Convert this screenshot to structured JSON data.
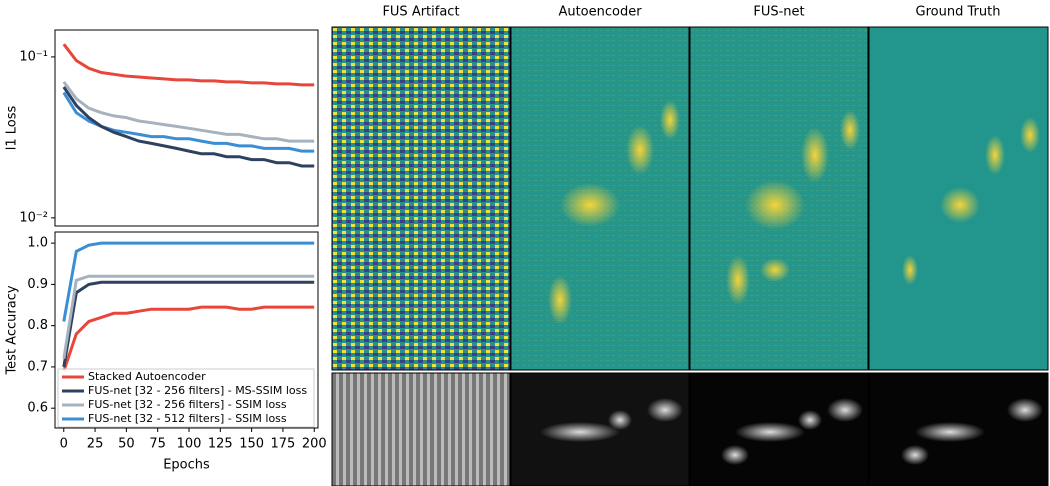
{
  "chart_data": [
    {
      "type": "line",
      "ylabel": "l1 Loss",
      "log_scale": true,
      "x": [
        0,
        10,
        20,
        30,
        40,
        50,
        60,
        70,
        80,
        90,
        100,
        110,
        120,
        130,
        140,
        150,
        160,
        170,
        180,
        190,
        200
      ],
      "xlim": [
        -7,
        203
      ],
      "ylim": [
        0.0089,
        0.147
      ],
      "yticks": [
        {
          "value": 0.1,
          "label": "10⁻¹"
        },
        {
          "value": 0.01,
          "label": "10⁻²"
        }
      ],
      "series": [
        {
          "color": "#e8463a",
          "values": [
            0.12,
            0.095,
            0.085,
            0.08,
            0.078,
            0.076,
            0.075,
            0.074,
            0.073,
            0.072,
            0.072,
            0.071,
            0.071,
            0.07,
            0.07,
            0.069,
            0.069,
            0.068,
            0.068,
            0.067,
            0.067
          ]
        },
        {
          "color": "#a6b3bf",
          "values": [
            0.07,
            0.055,
            0.048,
            0.045,
            0.043,
            0.042,
            0.04,
            0.039,
            0.038,
            0.037,
            0.036,
            0.035,
            0.034,
            0.033,
            0.033,
            0.032,
            0.031,
            0.031,
            0.03,
            0.03,
            0.03
          ]
        },
        {
          "color": "#3a8fd4",
          "values": [
            0.06,
            0.045,
            0.04,
            0.037,
            0.035,
            0.034,
            0.033,
            0.032,
            0.032,
            0.031,
            0.031,
            0.03,
            0.029,
            0.029,
            0.028,
            0.028,
            0.027,
            0.027,
            0.027,
            0.026,
            0.026
          ]
        },
        {
          "color": "#2e4160",
          "values": [
            0.065,
            0.05,
            0.042,
            0.037,
            0.034,
            0.032,
            0.03,
            0.029,
            0.028,
            0.027,
            0.026,
            0.025,
            0.025,
            0.024,
            0.024,
            0.023,
            0.023,
            0.022,
            0.022,
            0.021,
            0.021
          ]
        }
      ]
    },
    {
      "type": "line",
      "ylabel": "Test Accuracy",
      "xlabel": "Epochs",
      "legend": "lower left",
      "x": [
        0,
        10,
        20,
        30,
        40,
        50,
        60,
        70,
        80,
        90,
        100,
        110,
        120,
        130,
        140,
        150,
        160,
        170,
        180,
        190,
        200
      ],
      "xlim": [
        -7,
        203
      ],
      "ylim": [
        0.552,
        1.027
      ],
      "yticks": [
        0.6,
        0.7,
        0.8,
        0.9,
        {
          "value": 1.0,
          "label": "1.0"
        }
      ],
      "xticks": [
        0,
        25,
        50,
        75,
        100,
        125,
        150,
        175,
        200
      ],
      "series": [
        {
          "name": "Stacked Autoencoder",
          "color": "#e8463a",
          "values": [
            0.69,
            0.78,
            0.81,
            0.82,
            0.83,
            0.83,
            0.835,
            0.84,
            0.84,
            0.84,
            0.84,
            0.845,
            0.845,
            0.845,
            0.84,
            0.84,
            0.845,
            0.845,
            0.845,
            0.845,
            0.845
          ]
        },
        {
          "name": "FUS-net [32 - 256 filters] - MS-SSIM loss",
          "color": "#2e4160",
          "values": [
            0.7,
            0.88,
            0.9,
            0.905,
            0.905,
            0.905,
            0.905,
            0.905,
            0.905,
            0.905,
            0.905,
            0.905,
            0.905,
            0.905,
            0.905,
            0.905,
            0.905,
            0.905,
            0.905,
            0.905,
            0.905
          ]
        },
        {
          "name": "FUS-net [32 - 256 filters] - SSIM loss",
          "color": "#a6b3bf",
          "values": [
            0.72,
            0.91,
            0.92,
            0.92,
            0.92,
            0.92,
            0.92,
            0.92,
            0.92,
            0.92,
            0.92,
            0.92,
            0.92,
            0.92,
            0.92,
            0.92,
            0.92,
            0.92,
            0.92,
            0.92,
            0.92
          ]
        },
        {
          "name": "FUS-net [32 - 512 filters] - SSIM loss",
          "color": "#3a8fd4",
          "values": [
            0.81,
            0.98,
            0.995,
            1.0,
            1.0,
            1.0,
            1.0,
            1.0,
            1.0,
            1.0,
            1.0,
            1.0,
            1.0,
            1.0,
            1.0,
            1.0,
            1.0,
            1.0,
            1.0,
            1.0,
            1.0
          ]
        }
      ]
    }
  ],
  "image_panels": {
    "titles": [
      "FUS Artifact",
      "Autoencoder",
      "FUS-net",
      "Ground Truth"
    ]
  }
}
